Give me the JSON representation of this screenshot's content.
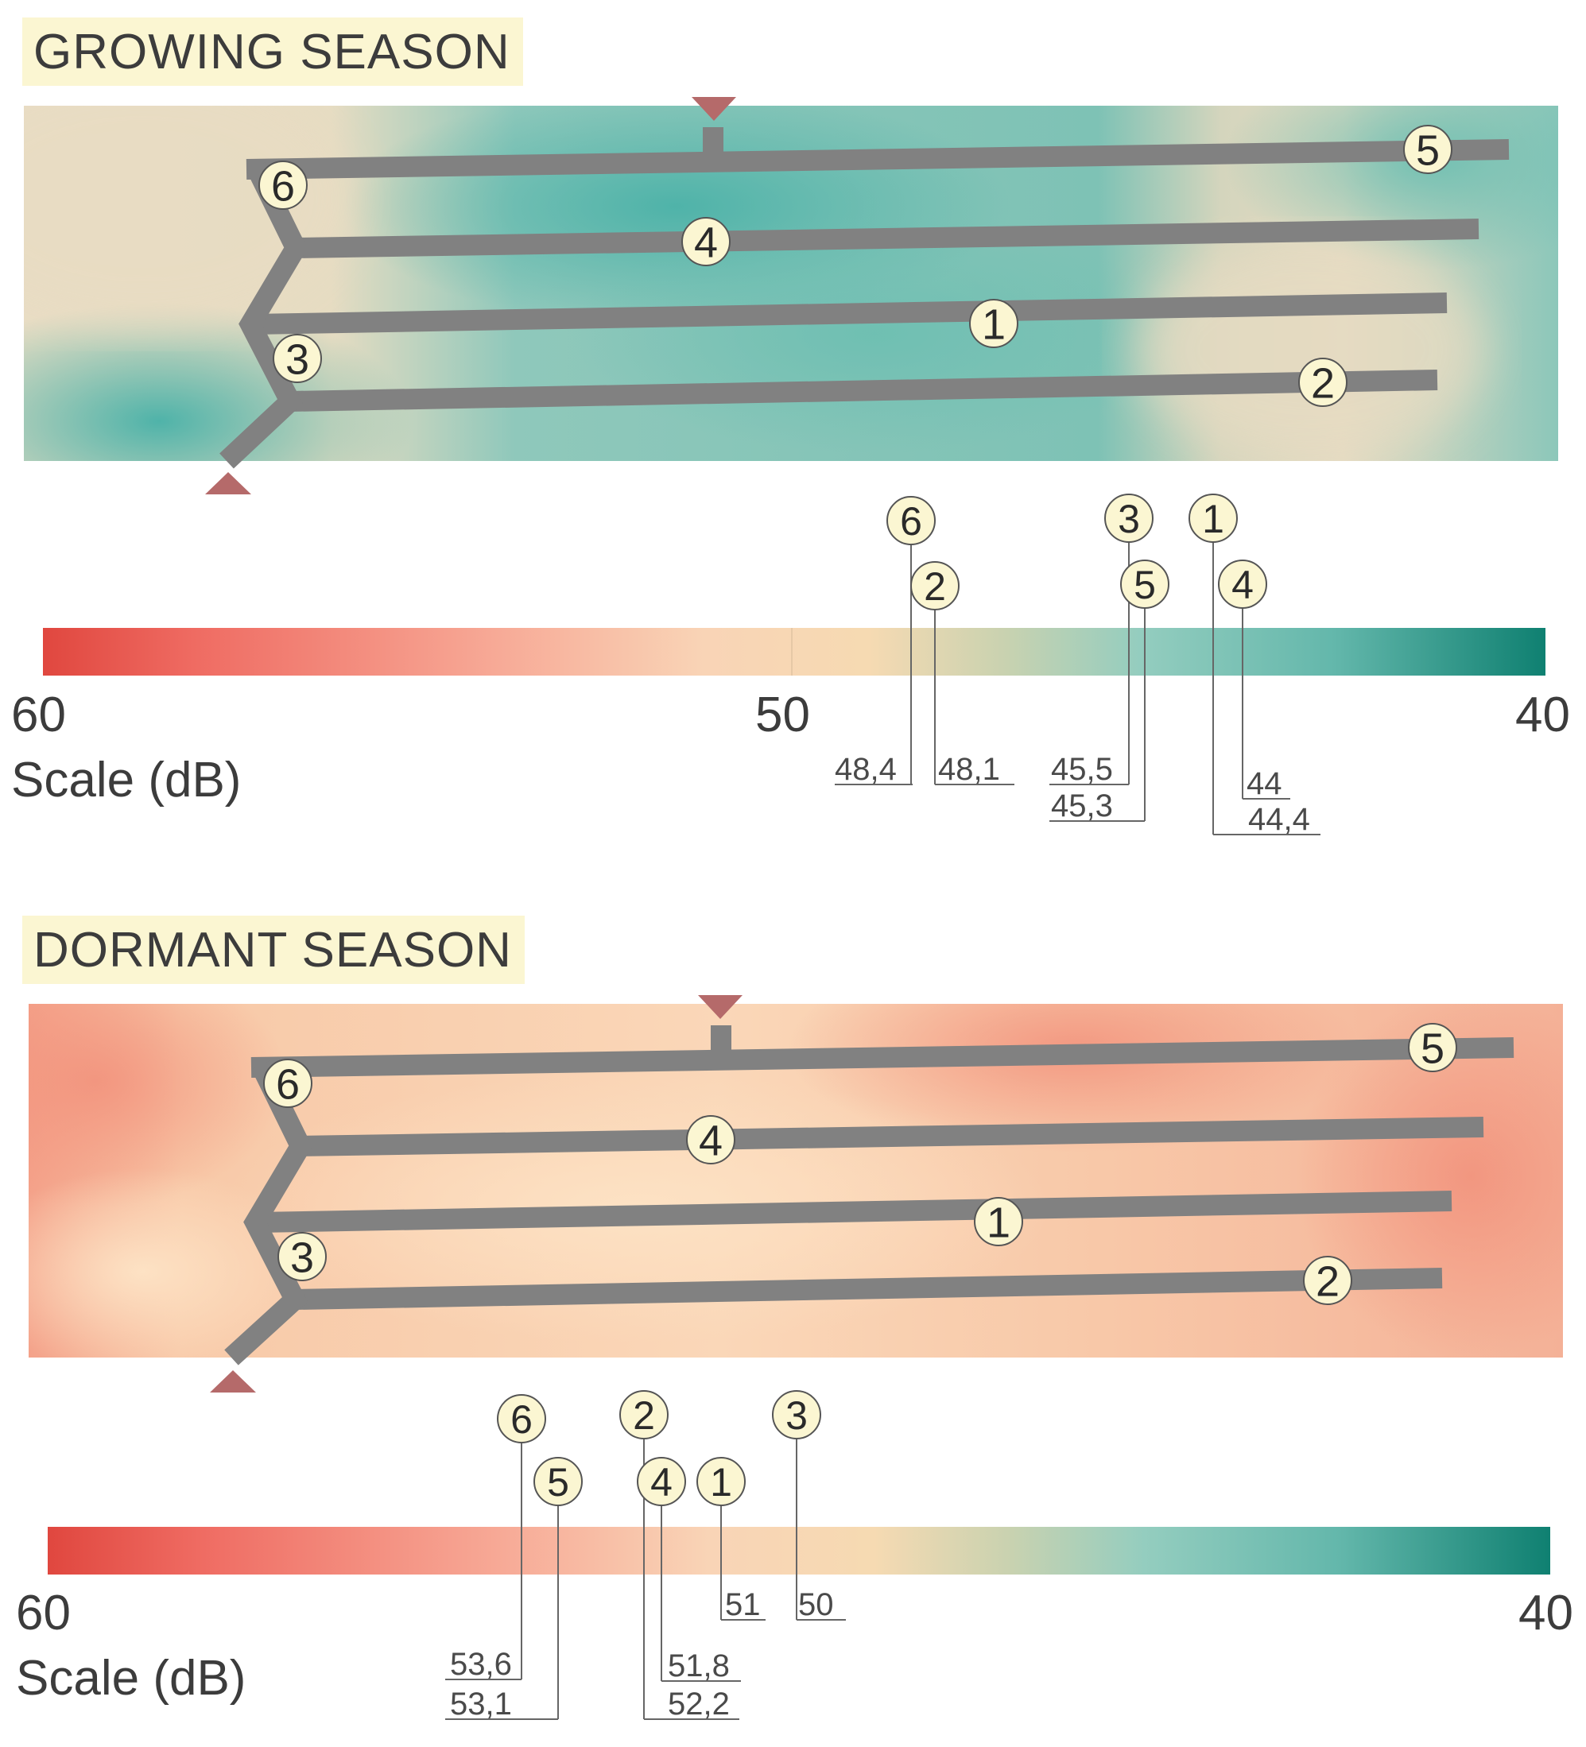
{
  "panels": [
    {
      "id": "growing",
      "title": "GROWING SEASON",
      "scale_label": "Scale (dB)",
      "scale_ticks": [
        "60",
        "50",
        "40"
      ],
      "pipe_labels": [
        "1",
        "2",
        "3",
        "4",
        "5",
        "6"
      ],
      "markers": [
        {
          "label": "6",
          "value": "48,4"
        },
        {
          "label": "2",
          "value": "48,1"
        },
        {
          "label": "3",
          "value": "45,5"
        },
        {
          "label": "5",
          "value": "45,3"
        },
        {
          "label": "1",
          "value": "44,4"
        },
        {
          "label": "4",
          "value": "44"
        }
      ]
    },
    {
      "id": "dormant",
      "title": "DORMANT SEASON",
      "scale_label": "Scale (dB)",
      "scale_ticks": [
        "60",
        "40"
      ],
      "pipe_labels": [
        "1",
        "2",
        "3",
        "4",
        "5",
        "6"
      ],
      "markers": [
        {
          "label": "6",
          "value": "53,6"
        },
        {
          "label": "5",
          "value": "53,1"
        },
        {
          "label": "2",
          "value": "52,2"
        },
        {
          "label": "4",
          "value": "51,8"
        },
        {
          "label": "1",
          "value": "51"
        },
        {
          "label": "3",
          "value": "50"
        }
      ]
    }
  ],
  "colors": {
    "pipe": "#818181",
    "marker_fill": "#fbf6d2",
    "arrow": "#b56a6a",
    "scale_red": "#e0473f",
    "scale_cream": "#f8d9b3",
    "scale_teal": "#7ac3b7",
    "scale_dark_teal": "#0f8071"
  }
}
